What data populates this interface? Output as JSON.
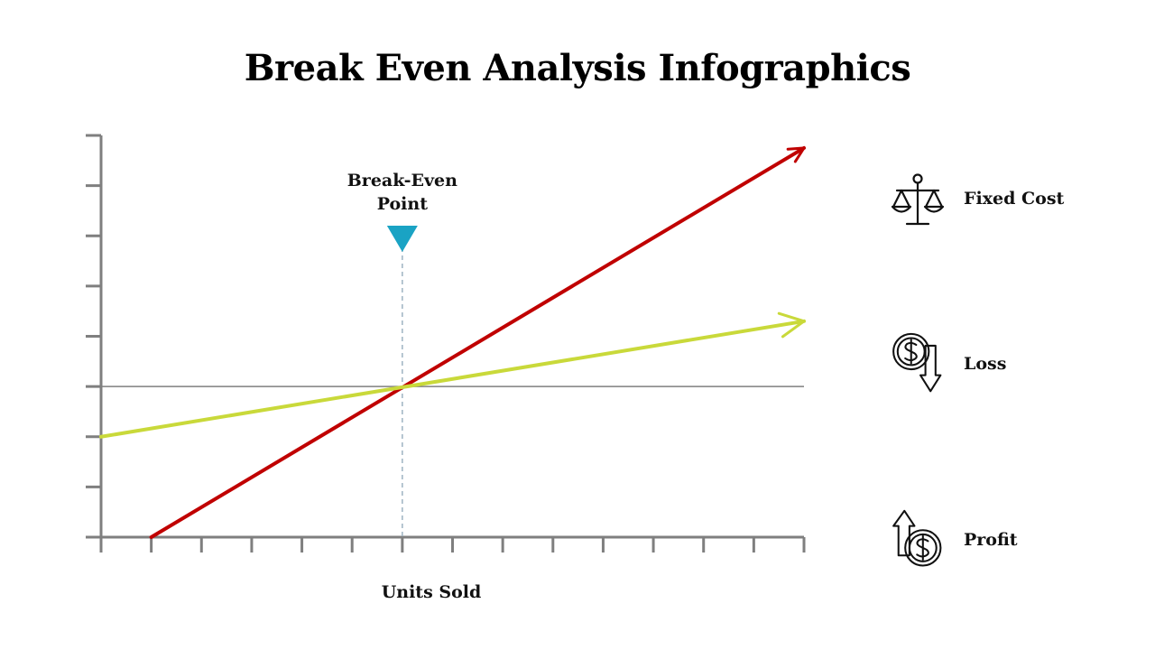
{
  "title": "Break Even Analysis Infographics",
  "chart_data": {
    "type": "line",
    "xlabel": "Units Sold",
    "ylabel": "",
    "xlim": [
      0,
      14
    ],
    "ylim": [
      0,
      8
    ],
    "x_ticks": 14,
    "y_ticks": 8,
    "series": [
      {
        "color": "#c00000",
        "x": [
          1,
          14
        ],
        "y": [
          0,
          7.75
        ],
        "arrow": true
      },
      {
        "color": "#c9d93a",
        "x": [
          0,
          14
        ],
        "y": [
          2,
          4.3
        ],
        "arrow": true
      }
    ],
    "reference_line": {
      "y": 3
    },
    "break_even": {
      "x": 6,
      "label_line1": "Break-Even",
      "label_line2": "Point",
      "marker_color": "#1aa3c4"
    }
  },
  "legend": [
    {
      "label": "Fixed Cost",
      "icon": "scale-icon"
    },
    {
      "label": "Loss",
      "icon": "dollar-down-icon"
    },
    {
      "label": "Profit",
      "icon": "dollar-up-icon"
    }
  ],
  "colors": {
    "axis": "#7f7f7f",
    "guide": "#9db3c2"
  }
}
